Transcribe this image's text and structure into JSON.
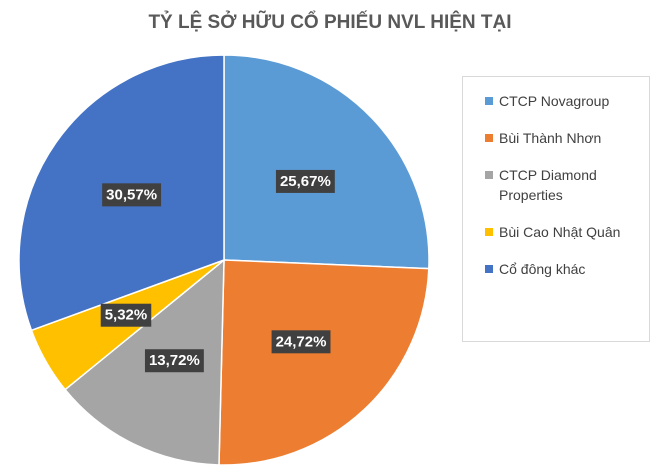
{
  "chart_data": {
    "type": "pie",
    "title": "TỶ LỆ SỞ HỮU CỔ PHIẾU NVL HIỆN TẠI",
    "categories": [
      "CTCP Novagroup",
      "Bùi Thành Nhơn",
      "CTCP Diamond Properties",
      "Bùi Cao Nhật Quân",
      "Cổ đông khác"
    ],
    "values": [
      25.67,
      24.72,
      13.72,
      5.32,
      30.57
    ],
    "value_labels": [
      "25,67%",
      "24,72%",
      "13,72%",
      "5,32%",
      "30,57%"
    ],
    "colors": [
      "#5b9bd5",
      "#ed7d31",
      "#a5a5a5",
      "#ffc000",
      "#4472c4"
    ],
    "legend": "right"
  }
}
